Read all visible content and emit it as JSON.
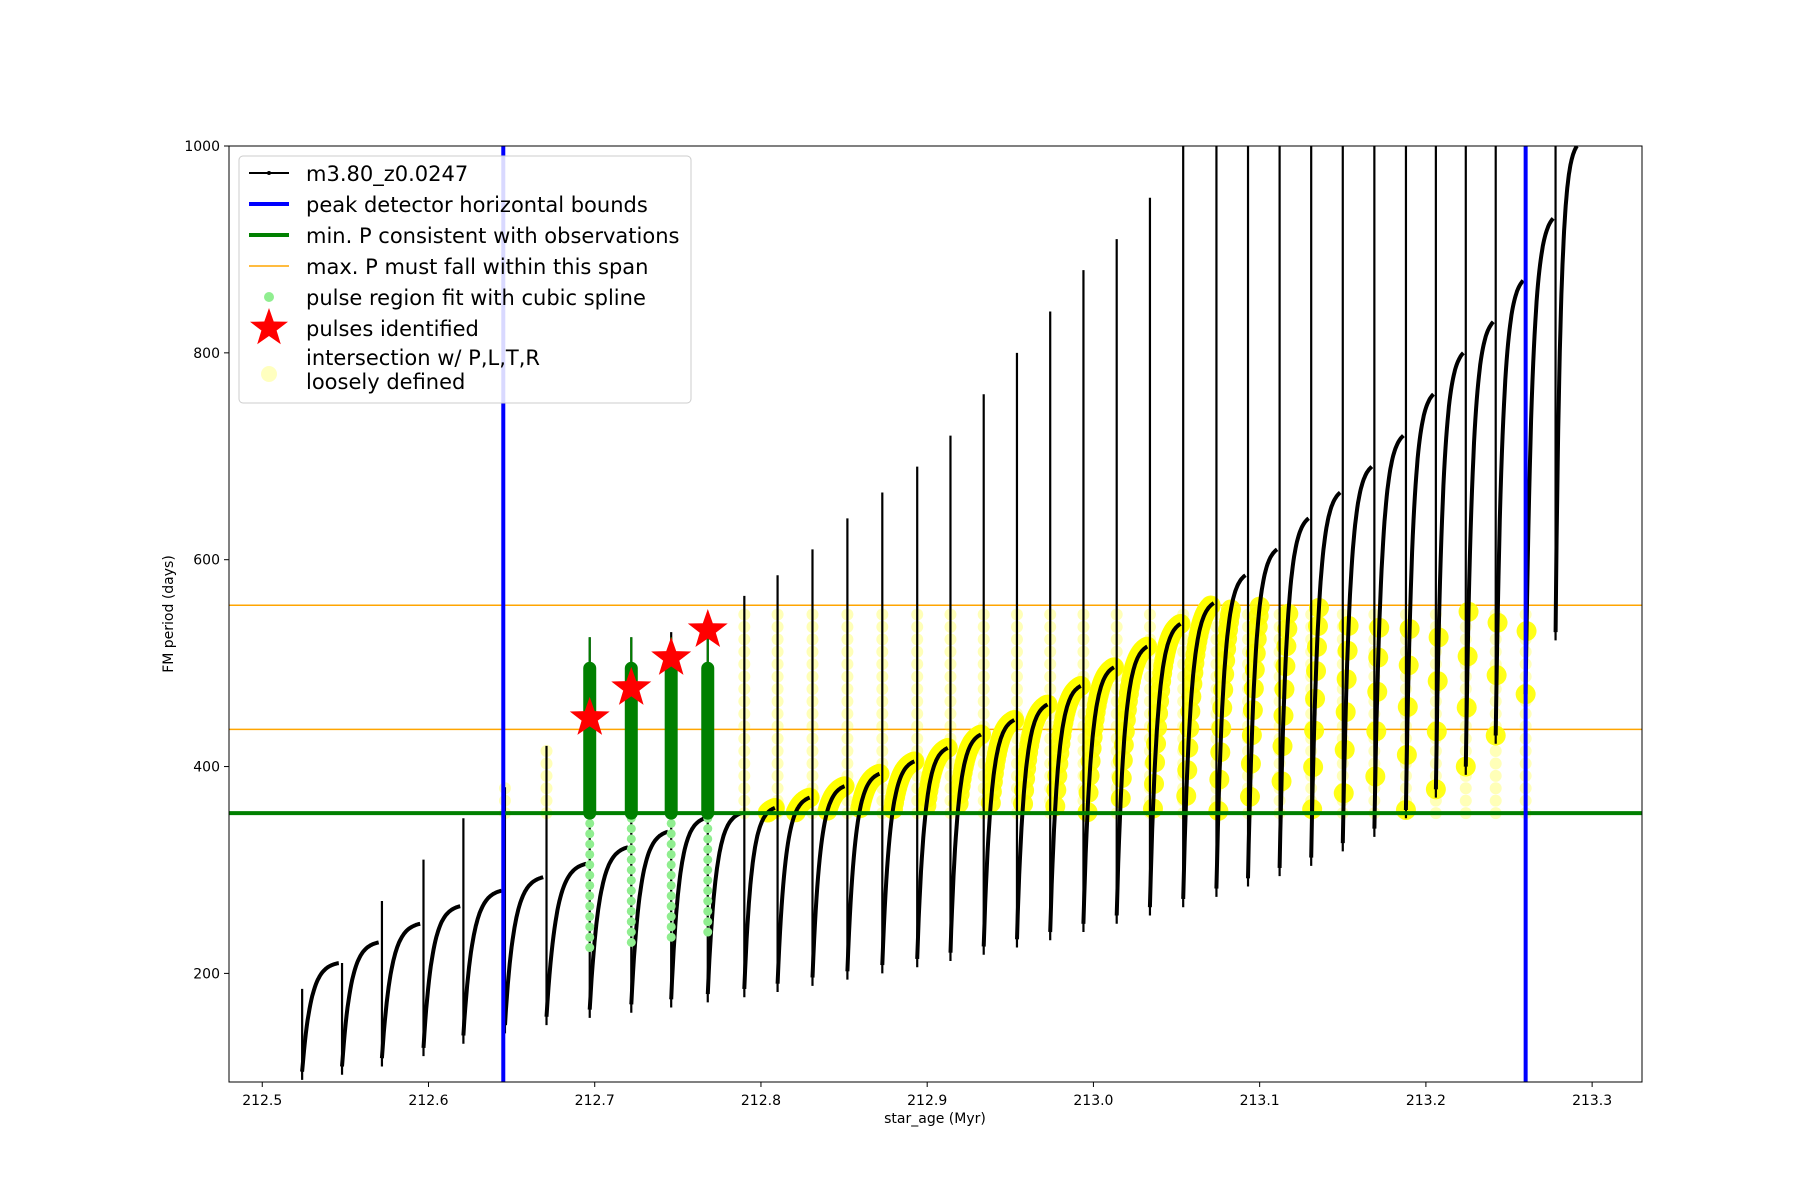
{
  "chart_data": {
    "type": "scatter",
    "xlabel": "star_age (Myr)",
    "ylabel": "FM period (days)",
    "xlim": [
      212.48,
      213.33
    ],
    "ylim": [
      95,
      1000
    ],
    "xticks": [
      212.5,
      212.6,
      212.7,
      212.8,
      212.9,
      213.0,
      213.1,
      213.2,
      213.3
    ],
    "xtick_labels": [
      "212.5",
      "212.6",
      "212.7",
      "212.8",
      "212.9",
      "213.0",
      "213.1",
      "213.2",
      "213.3"
    ],
    "yticks": [
      200,
      400,
      600,
      800,
      1000
    ],
    "ytick_labels": [
      "200",
      "400",
      "600",
      "800",
      "1000"
    ],
    "grid": false,
    "legend_position": "upper-left",
    "peak_detector_bounds": [
      212.645,
      213.26
    ],
    "min_period": 355,
    "max_period_span": [
      436,
      556
    ],
    "pulse_times": [
      212.524,
      212.548,
      212.572,
      212.597,
      212.621,
      212.646,
      212.671,
      212.697,
      212.722,
      212.746,
      212.768,
      212.79,
      212.81,
      212.831,
      212.852,
      212.873,
      212.894,
      212.914,
      212.934,
      212.954,
      212.974,
      212.994,
      213.014,
      213.034,
      213.054,
      213.074,
      213.093,
      213.112,
      213.131,
      213.15,
      213.169,
      213.188,
      213.206,
      213.224,
      213.242,
      213.26,
      213.278
    ],
    "pulse_min_period": [
      105,
      110,
      118,
      128,
      140,
      150,
      158,
      165,
      170,
      175,
      180,
      185,
      190,
      196,
      202,
      208,
      214,
      220,
      226,
      233,
      240,
      248,
      256,
      264,
      272,
      282,
      292,
      302,
      312,
      326,
      340,
      358,
      378,
      400,
      430,
      470,
      530
    ],
    "pulse_max_period": [
      210,
      230,
      248,
      265,
      280,
      293,
      306,
      322,
      337,
      350,
      355,
      360,
      370,
      381,
      393,
      405,
      418,
      431,
      445,
      460,
      478,
      496,
      516,
      538,
      558,
      585,
      610,
      640,
      665,
      690,
      720,
      760,
      800,
      830,
      870,
      930,
      1000
    ],
    "pulse_spike_period": [
      185,
      210,
      270,
      310,
      350,
      380,
      420,
      525,
      525,
      530,
      540,
      565,
      585,
      610,
      640,
      665,
      690,
      720,
      760,
      800,
      840,
      880,
      910,
      950,
      1000,
      1000,
      1000,
      1000,
      1000,
      1000,
      1000,
      1000,
      1000,
      1000,
      1000,
      1000,
      1000
    ],
    "pulses_identified": [
      {
        "x": 212.697,
        "y": 447
      },
      {
        "x": 212.722,
        "y": 476
      },
      {
        "x": 212.746,
        "y": 505
      },
      {
        "x": 212.768,
        "y": 532
      }
    ],
    "series": [
      {
        "name": "m3.80_z0.0247",
        "color": "#000000",
        "marker": "line-with-points"
      },
      {
        "name": "peak detector horizontal bounds",
        "color": "#0000ff",
        "marker": "vertical-line"
      },
      {
        "name": "min. P consistent with observations",
        "color": "#008000",
        "marker": "horizontal-line"
      },
      {
        "name": "max. P must fall within this span",
        "color": "#ffa500",
        "marker": "horizontal-line"
      },
      {
        "name": "pulse region fit with cubic spline",
        "color": "#90ee90",
        "marker": "circle"
      },
      {
        "name": "pulses identified",
        "color": "#ff0000",
        "marker": "star"
      },
      {
        "name": "intersection w/ P,L,T,R\nloosely defined",
        "color": "#ffff00",
        "marker": "circle-faint"
      }
    ],
    "colors": {
      "track": "#000000",
      "bounds": "#0000ff",
      "min_p": "#008000",
      "max_p": "#ffa500",
      "spline": "#90ee90",
      "star": "#ff0000",
      "yellow": "#ffff00"
    }
  }
}
